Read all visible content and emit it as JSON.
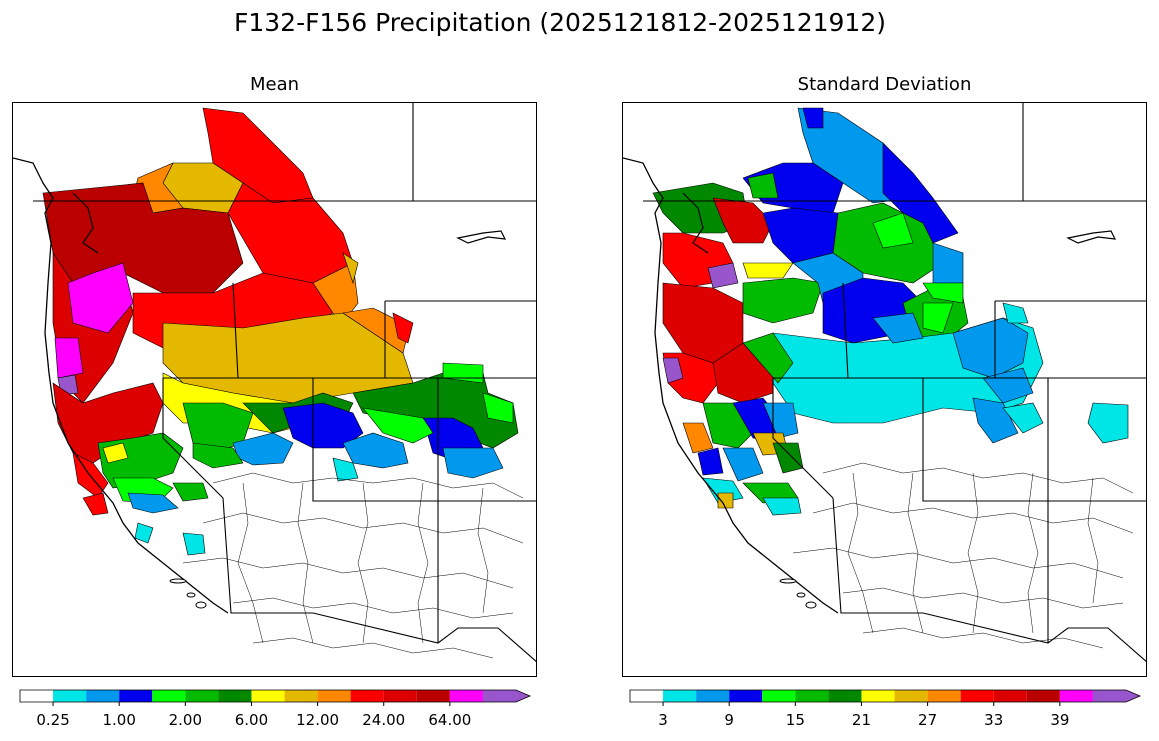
{
  "suptitle": "F132-F156 Precipitation (2025121812-2025121912)",
  "panels": [
    {
      "title": "Mean",
      "colorbar": {
        "colors": [
          "#ffffff",
          "#00e5e5",
          "#0099ee",
          "#0000ee",
          "#00ff00",
          "#00bb00",
          "#008800",
          "#ffff00",
          "#e5b800",
          "#ff8800",
          "#ff0000",
          "#dd0000",
          "#bb0000",
          "#ff00ff",
          "#9955cc"
        ],
        "tick_labels": [
          "0.25",
          "1.00",
          "2.00",
          "6.00",
          "12.00",
          "24.00",
          "64.00"
        ],
        "extend": "max"
      }
    },
    {
      "title": "Standard Deviation",
      "colorbar": {
        "colors": [
          "#ffffff",
          "#00e5e5",
          "#0099ee",
          "#0000ee",
          "#00ff00",
          "#00bb00",
          "#008800",
          "#ffff00",
          "#e5b800",
          "#ff8800",
          "#ff0000",
          "#dd0000",
          "#bb0000",
          "#ff00ff",
          "#9955cc"
        ],
        "tick_labels": [
          "3",
          "9",
          "15",
          "21",
          "27",
          "33",
          "39"
        ],
        "extend": "max"
      }
    }
  ]
}
